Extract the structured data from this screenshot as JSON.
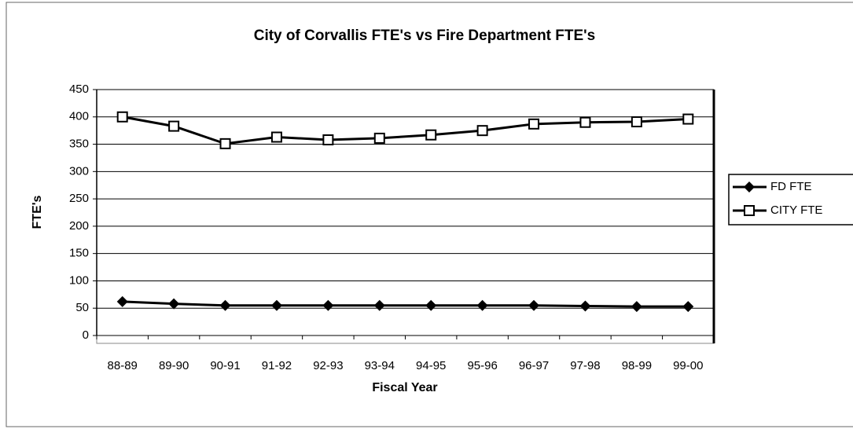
{
  "chart_data": {
    "type": "line",
    "title": "City of Corvallis FTE's vs Fire Department FTE's",
    "x_label": "Fiscal Year",
    "y_label": "FTE's",
    "categories": [
      "88-89",
      "89-90",
      "90-91",
      "91-92",
      "92-93",
      "93-94",
      "94-95",
      "95-96",
      "96-97",
      "97-98",
      "98-99",
      "99-00"
    ],
    "series": [
      {
        "name": "FD FTE",
        "color": "#000000",
        "marker": "diamond",
        "values": [
          62,
          58,
          55,
          55,
          55,
          55,
          55,
          55,
          55,
          54,
          53,
          53
        ]
      },
      {
        "name": "CITY FTE",
        "color": "#000000",
        "marker": "square",
        "values": [
          400,
          383,
          351,
          363,
          358,
          361,
          367,
          375,
          387,
          390,
          391,
          396
        ]
      }
    ],
    "ylim": [
      0,
      450
    ],
    "yticks": [
      0,
      50,
      100,
      150,
      200,
      250,
      300,
      350,
      400,
      450
    ],
    "grid": true,
    "legend": "right"
  }
}
